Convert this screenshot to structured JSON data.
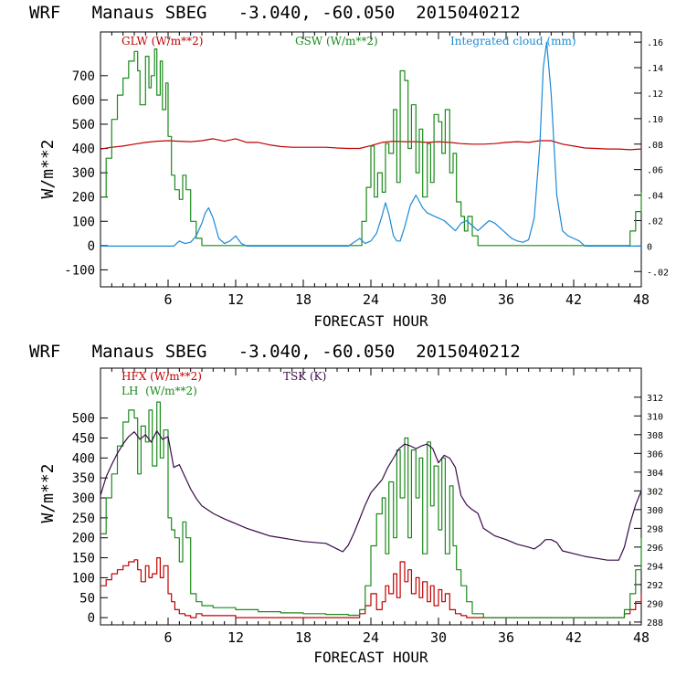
{
  "chart_data": [
    {
      "type": "line",
      "title": "WRF   Manaus SBEG   -3.040, -60.050  2015040212",
      "xlabel": "FORECAST HOUR",
      "ylabel": "W/m**2",
      "xlim": [
        0,
        48
      ],
      "ylim": [
        -170,
        880
      ],
      "y2lim": [
        -0.032,
        0.168
      ],
      "xticks": [
        6,
        12,
        18,
        24,
        30,
        36,
        42,
        48
      ],
      "yticks": [
        -100,
        0,
        100,
        200,
        300,
        400,
        500,
        600,
        700
      ],
      "y2ticks": [
        -0.02,
        0,
        0.02,
        0.04,
        0.06,
        0.08,
        0.1,
        0.12,
        0.14,
        0.16
      ],
      "y2ticklabels": [
        "-.02",
        "0",
        ".02",
        ".04",
        ".06",
        ".08",
        ".10",
        ".12",
        ".14",
        ".16"
      ],
      "series": [
        {
          "name": "GLW (W/m**2)",
          "color": "#c00000",
          "axis": "left",
          "step": false,
          "x": [
            0,
            1,
            2,
            3,
            4,
            5,
            6,
            7,
            8,
            9,
            10,
            11,
            12,
            13,
            14,
            15,
            16,
            17,
            18,
            19,
            20,
            21,
            22,
            23,
            24,
            25,
            26,
            27,
            28,
            29,
            30,
            31,
            32,
            33,
            34,
            35,
            36,
            37,
            38,
            39,
            40,
            41,
            42,
            43,
            44,
            45,
            46,
            47,
            48
          ],
          "y": [
            398,
            405,
            410,
            418,
            425,
            430,
            432,
            430,
            428,
            432,
            440,
            430,
            440,
            425,
            425,
            415,
            408,
            405,
            405,
            405,
            405,
            402,
            400,
            400,
            412,
            425,
            430,
            428,
            428,
            425,
            428,
            425,
            420,
            418,
            418,
            420,
            425,
            428,
            425,
            432,
            432,
            418,
            410,
            402,
            400,
            398,
            398,
            395,
            398
          ]
        },
        {
          "name": "GSW (W/m**2)",
          "color": "#1a8a1a",
          "axis": "left",
          "step": true,
          "x": [
            0,
            0.5,
            1,
            1.5,
            2,
            2.5,
            3,
            3.3,
            3.5,
            4,
            4.3,
            4.5,
            4.8,
            5,
            5.3,
            5.5,
            5.8,
            6,
            6.3,
            6.6,
            7,
            7.3,
            7.6,
            8,
            8.5,
            9,
            22.8,
            23.2,
            23.6,
            24,
            24.3,
            24.6,
            25,
            25.3,
            25.6,
            26,
            26.3,
            26.6,
            27,
            27.3,
            27.6,
            28,
            28.3,
            28.6,
            29,
            29.3,
            29.6,
            30,
            30.3,
            30.6,
            31,
            31.3,
            31.6,
            32,
            32.3,
            32.6,
            33,
            33.5,
            46.5,
            47,
            47.5,
            48
          ],
          "y": [
            200,
            360,
            520,
            620,
            690,
            760,
            800,
            720,
            580,
            780,
            650,
            700,
            810,
            620,
            760,
            560,
            670,
            450,
            290,
            230,
            190,
            290,
            230,
            100,
            30,
            0,
            0,
            100,
            240,
            410,
            200,
            300,
            220,
            420,
            380,
            560,
            260,
            720,
            680,
            400,
            580,
            300,
            480,
            200,
            420,
            260,
            540,
            510,
            380,
            560,
            300,
            380,
            180,
            120,
            60,
            120,
            40,
            0,
            0,
            60,
            140,
            220
          ]
        },
        {
          "name": "Integrated cloud (mm)",
          "color": "#1a8ad4",
          "axis": "right",
          "step": false,
          "x": [
            0,
            6.5,
            7,
            7.5,
            8,
            8.5,
            9,
            9.3,
            9.6,
            10,
            10.5,
            11,
            11.5,
            12,
            12.5,
            13,
            22,
            22.5,
            23,
            23.5,
            24,
            24.5,
            25,
            25.3,
            25.6,
            26,
            26.3,
            26.6,
            27,
            27.5,
            28,
            28.3,
            28.6,
            29,
            29.5,
            30,
            30.5,
            31,
            31.5,
            32,
            32.5,
            33,
            33.5,
            34,
            34.5,
            35,
            35.5,
            36,
            36.5,
            37,
            37.5,
            38,
            38.5,
            39,
            39.3,
            39.6,
            40,
            40.5,
            41,
            41.5,
            42,
            42.5,
            43,
            48
          ],
          "y": [
            0,
            0,
            0.004,
            0.002,
            0.003,
            0.008,
            0.018,
            0.026,
            0.03,
            0.022,
            0.006,
            0.002,
            0.004,
            0.008,
            0.002,
            0,
            0,
            0.003,
            0.006,
            0.002,
            0.004,
            0.01,
            0.024,
            0.034,
            0.025,
            0.008,
            0.004,
            0.004,
            0.015,
            0.032,
            0.04,
            0.035,
            0.03,
            0.026,
            0.024,
            0.022,
            0.02,
            0.016,
            0.012,
            0.018,
            0.02,
            0.016,
            0.012,
            0.016,
            0.02,
            0.018,
            0.014,
            0.01,
            0.006,
            0.004,
            0.003,
            0.005,
            0.022,
            0.08,
            0.14,
            0.16,
            0.12,
            0.04,
            0.012,
            0.008,
            0.006,
            0.004,
            0,
            0
          ]
        }
      ]
    },
    {
      "type": "line",
      "title": "WRF   Manaus SBEG   -3.040, -60.050  2015040212",
      "xlabel": "FORECAST HOUR",
      "ylabel": "W/m**2",
      "xlim": [
        0,
        48
      ],
      "ylim": [
        -18,
        625
      ],
      "y2lim": [
        287.7,
        315.1
      ],
      "xticks": [
        6,
        12,
        18,
        24,
        30,
        36,
        42,
        48
      ],
      "yticks": [
        0,
        50,
        100,
        150,
        200,
        250,
        300,
        350,
        400,
        450,
        500
      ],
      "y2ticks": [
        288,
        290,
        292,
        294,
        296,
        298,
        300,
        302,
        304,
        306,
        308,
        310,
        312
      ],
      "y2ticklabels": [
        "288",
        "290",
        "292",
        "294",
        "296",
        "298",
        "300",
        "302",
        "304",
        "306",
        "308",
        "310",
        "312"
      ],
      "series": [
        {
          "name": "HFX (W/m**2)",
          "color": "#c00000",
          "axis": "left",
          "step": true,
          "x": [
            0,
            0.5,
            1,
            1.5,
            2,
            2.5,
            3,
            3.3,
            3.6,
            4,
            4.3,
            4.6,
            5,
            5.3,
            5.6,
            6,
            6.3,
            6.6,
            7,
            7.5,
            8,
            8.5,
            9,
            12,
            22.5,
            23,
            23.5,
            24,
            24.5,
            25,
            25.3,
            25.6,
            26,
            26.3,
            26.6,
            27,
            27.3,
            27.6,
            28,
            28.3,
            28.6,
            29,
            29.3,
            29.6,
            30,
            30.3,
            30.6,
            31,
            31.5,
            32,
            32.5,
            33,
            34,
            46,
            46.5,
            47,
            47.5,
            48
          ],
          "y": [
            80,
            95,
            110,
            120,
            130,
            140,
            145,
            120,
            90,
            130,
            100,
            110,
            150,
            100,
            130,
            60,
            40,
            20,
            10,
            5,
            0,
            10,
            5,
            0,
            0,
            10,
            30,
            60,
            20,
            40,
            80,
            60,
            110,
            50,
            140,
            90,
            120,
            60,
            100,
            50,
            90,
            40,
            80,
            30,
            70,
            40,
            60,
            20,
            10,
            5,
            0,
            0,
            0,
            0,
            10,
            20,
            40,
            60
          ]
        },
        {
          "name": "LH  (W/m**2)",
          "color": "#1a8a1a",
          "axis": "left",
          "step": true,
          "x": [
            0,
            0.5,
            1,
            1.5,
            2,
            2.5,
            3,
            3.3,
            3.6,
            4,
            4.3,
            4.6,
            5,
            5.3,
            5.6,
            6,
            6.3,
            6.6,
            7,
            7.3,
            7.6,
            8,
            8.5,
            9,
            10,
            12,
            14,
            16,
            18,
            20,
            22,
            23,
            23.5,
            24,
            24.5,
            25,
            25.3,
            25.6,
            26,
            26.3,
            26.6,
            27,
            27.3,
            27.6,
            28,
            28.3,
            28.6,
            29,
            29.3,
            29.6,
            30,
            30.3,
            30.6,
            31,
            31.3,
            31.6,
            32,
            32.5,
            33,
            34,
            46,
            46.5,
            47,
            47.5,
            48
          ],
          "y": [
            210,
            300,
            360,
            430,
            490,
            520,
            500,
            360,
            480,
            440,
            520,
            380,
            540,
            400,
            470,
            250,
            220,
            200,
            140,
            240,
            200,
            60,
            40,
            30,
            25,
            20,
            15,
            12,
            10,
            8,
            6,
            20,
            80,
            180,
            260,
            300,
            160,
            340,
            200,
            420,
            300,
            450,
            200,
            420,
            300,
            400,
            160,
            440,
            280,
            380,
            220,
            400,
            160,
            330,
            180,
            120,
            80,
            40,
            10,
            0,
            0,
            20,
            60,
            120,
            200
          ]
        },
        {
          "name": "TSK (K)",
          "color": "#3a0a4a",
          "axis": "right",
          "step": false,
          "x": [
            0,
            0.5,
            1,
            1.5,
            2,
            2.5,
            3,
            3.5,
            4,
            4.5,
            5,
            5.5,
            6,
            6.5,
            7,
            7.5,
            8,
            8.5,
            9,
            10,
            11,
            12,
            13,
            14,
            15,
            16,
            17,
            18,
            19,
            20,
            21,
            21.5,
            22,
            22.5,
            23,
            23.5,
            24,
            24.5,
            25,
            25.5,
            26,
            26.5,
            27,
            27.5,
            28,
            28.5,
            29,
            29.5,
            30,
            30.5,
            31,
            31.5,
            32,
            32.5,
            33,
            33.5,
            34,
            35,
            36,
            37,
            38,
            38.5,
            39,
            39.5,
            40,
            40.5,
            41,
            42,
            43,
            44,
            45,
            46,
            46.5,
            47,
            47.5,
            48
          ],
          "y": [
            301.5,
            303.5,
            304.8,
            306,
            307,
            307.8,
            308.3,
            307.5,
            308,
            307.2,
            308.4,
            307.5,
            307.8,
            304.5,
            304.8,
            303.5,
            302.2,
            301.2,
            300.4,
            299.6,
            299,
            298.5,
            298,
            297.6,
            297.2,
            297,
            296.8,
            296.6,
            296.5,
            296.4,
            295.8,
            295.5,
            296.2,
            297.5,
            299,
            300.5,
            301.8,
            302.5,
            303.2,
            304.5,
            305.5,
            306.5,
            307,
            306.8,
            306.5,
            306.8,
            307,
            306.5,
            305,
            305.8,
            305.5,
            304.5,
            301.5,
            300.5,
            300,
            299.6,
            298,
            297.2,
            296.8,
            296.3,
            296,
            295.8,
            296.2,
            296.8,
            296.8,
            296.5,
            295.6,
            295.3,
            295,
            294.8,
            294.6,
            294.6,
            296,
            298.5,
            300.5,
            302
          ]
        }
      ]
    }
  ]
}
